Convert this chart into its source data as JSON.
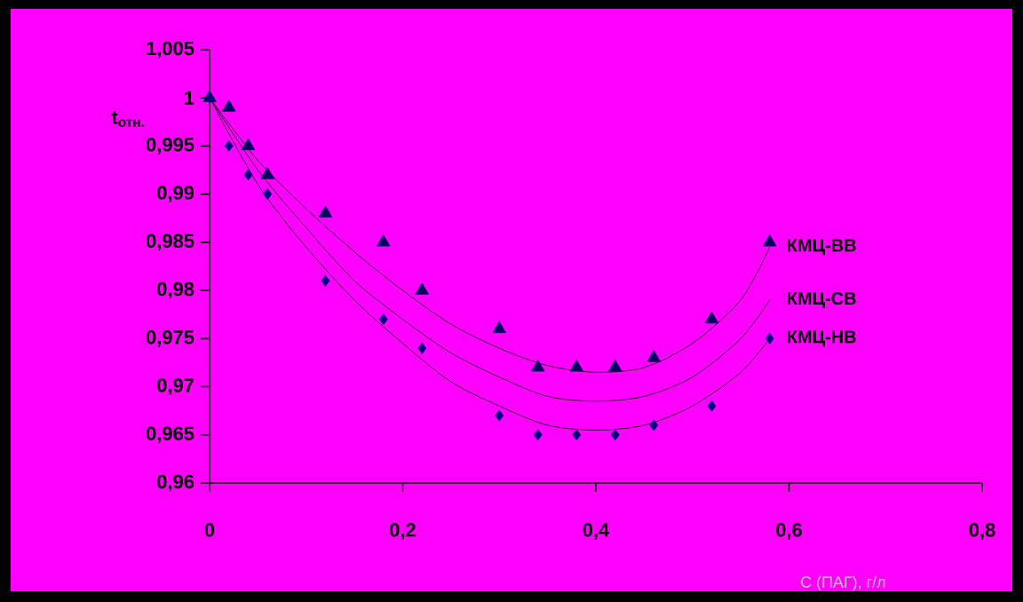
{
  "chart_data": {
    "type": "scatter",
    "xlabel": "С (ПАГ), г/л",
    "ylabel": "t$_{отн.}$",
    "xlim": [
      0,
      0.8
    ],
    "xticks": [
      {
        "value": 0,
        "label": "0"
      },
      {
        "value": 0.2,
        "label": "0,2"
      },
      {
        "value": 0.4,
        "label": "0,4"
      },
      {
        "value": 0.6,
        "label": "0,6"
      },
      {
        "value": 0.8,
        "label": "0,8"
      }
    ],
    "ylim": [
      0.96,
      1.005
    ],
    "yticks": [
      {
        "value": 0.96,
        "label": "0,96"
      },
      {
        "value": 0.965,
        "label": "0,965"
      },
      {
        "value": 0.97,
        "label": "0,97"
      },
      {
        "value": 0.975,
        "label": "0,975"
      },
      {
        "value": 0.98,
        "label": "0,98"
      },
      {
        "value": 0.985,
        "label": "0,985"
      },
      {
        "value": 0.99,
        "label": "0,99"
      },
      {
        "value": 0.995,
        "label": "0,995"
      },
      {
        "value": 1,
        "label": "1"
      },
      {
        "value": 1.005,
        "label": "1,005"
      }
    ],
    "legend": false,
    "series": [
      {
        "marker": "triangle",
        "color": "#000060",
        "x": [
          0,
          0.02,
          0.04,
          0.06,
          0.12,
          0.18,
          0.22,
          0.3,
          0.34,
          0.38,
          0.42,
          0.46,
          0.52,
          0.58
        ],
        "values": [
          1,
          0.999,
          0.995,
          0.992,
          0.988,
          0.985,
          0.98,
          0.976,
          0.972,
          0.972,
          0.972,
          0.973,
          0.977,
          0.985
        ]
      },
      {
        "marker": "diamond",
        "color": "#000080",
        "x": [
          0,
          0.02,
          0.04,
          0.06,
          0.12,
          0.18,
          0.22,
          0.3,
          0.34,
          0.38,
          0.42,
          0.46,
          0.52,
          0.58
        ],
        "values": [
          1,
          0.995,
          0.992,
          0.99,
          0.981,
          0.977,
          0.974,
          0.967,
          0.965,
          0.965,
          0.965,
          0.966,
          0.968,
          0.975
        ]
      },
      {
        "type": "line",
        "name": "КМЦ-ВВ",
        "marker": "none",
        "color": "#000000",
        "x": [
          0,
          0.05,
          0.1,
          0.15,
          0.2,
          0.25,
          0.3,
          0.35,
          0.4,
          0.45,
          0.5,
          0.55,
          0.58
        ],
        "values": [
          1,
          0.9935,
          0.9885,
          0.984,
          0.98,
          0.9765,
          0.974,
          0.9722,
          0.9715,
          0.972,
          0.9745,
          0.979,
          0.9845
        ]
      },
      {
        "type": "line",
        "name": "КМЦ-СВ",
        "marker": "none",
        "color": "#000000",
        "x": [
          0,
          0.05,
          0.1,
          0.15,
          0.2,
          0.25,
          0.3,
          0.35,
          0.4,
          0.45,
          0.5,
          0.55,
          0.58
        ],
        "values": [
          1,
          0.9925,
          0.9865,
          0.981,
          0.977,
          0.9735,
          0.971,
          0.969,
          0.9685,
          0.969,
          0.971,
          0.975,
          0.979
        ]
      },
      {
        "type": "line",
        "name": "КМЦ-НВ",
        "marker": "none",
        "color": "#000000",
        "x": [
          0,
          0.05,
          0.1,
          0.15,
          0.2,
          0.25,
          0.3,
          0.35,
          0.4,
          0.45,
          0.5,
          0.55,
          0.58
        ],
        "values": [
          1,
          0.991,
          0.9845,
          0.979,
          0.9745,
          0.9705,
          0.968,
          0.966,
          0.9655,
          0.966,
          0.968,
          0.9715,
          0.975
        ]
      }
    ]
  }
}
